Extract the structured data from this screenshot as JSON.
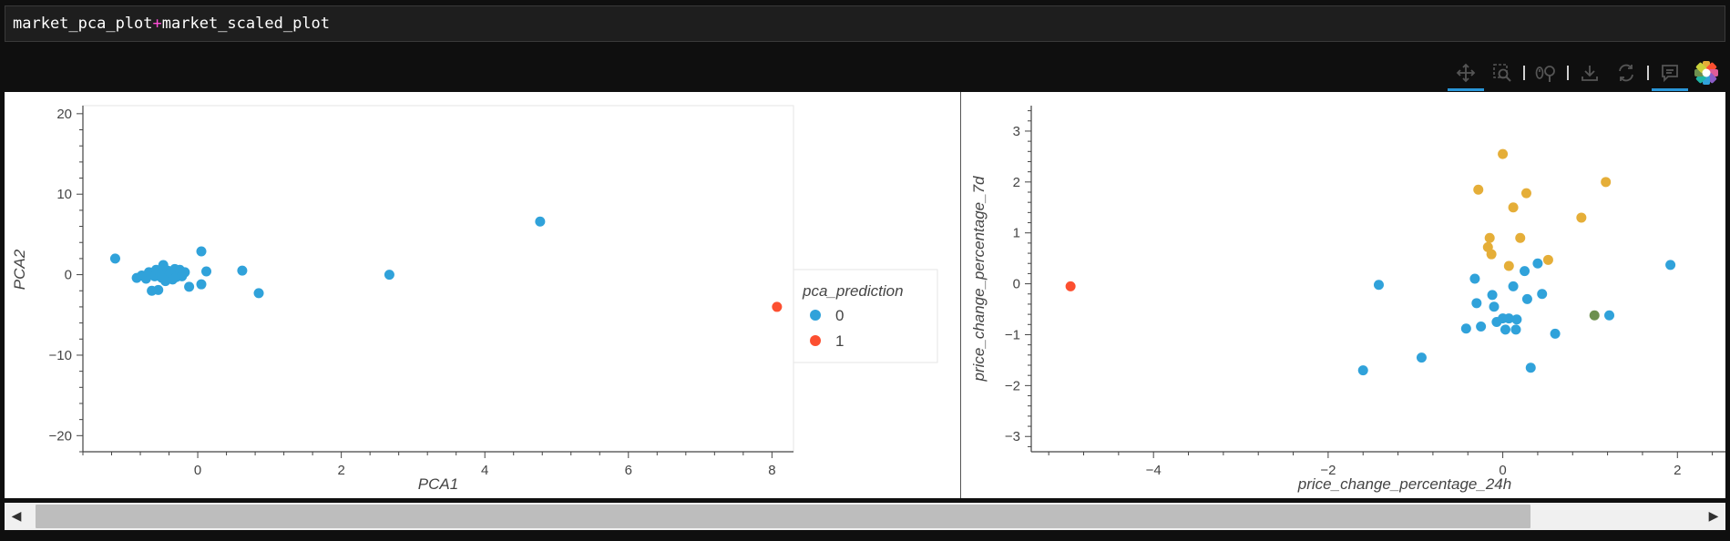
{
  "code": {
    "left_operand": "market_pca_plot",
    "operator": "+",
    "right_operand": "market_scaled_plot"
  },
  "toolbar": {
    "tools": [
      {
        "name": "pan-tool",
        "icon": "pan-icon",
        "active": true
      },
      {
        "name": "box-zoom-tool",
        "icon": "box-zoom-icon",
        "active": false
      },
      {
        "name": "wheel-zoom-tool",
        "icon": "wheel-zoom-icon",
        "active": false
      },
      {
        "name": "save-tool",
        "icon": "save-icon",
        "active": false
      },
      {
        "name": "reset-tool",
        "icon": "reset-icon",
        "active": false
      },
      {
        "name": "hover-tool",
        "icon": "hover-icon",
        "active": true
      },
      {
        "name": "bokeh-logo",
        "icon": "bokeh-logo-icon",
        "active": false
      }
    ]
  },
  "colors": {
    "cluster_0": "#30a2da",
    "cluster_1": "#fc4f30",
    "cluster_2": "#e5ae38",
    "cluster_3": "#6d904f"
  },
  "chart_data": [
    {
      "type": "scatter",
      "title": "",
      "xlabel": "PCA1",
      "ylabel": "PCA2",
      "xlim": [
        -1.6,
        8.3
      ],
      "ylim": [
        -22,
        21
      ],
      "xticks": [
        0,
        2,
        4,
        6,
        8
      ],
      "yticks": [
        -20,
        -10,
        0,
        10,
        20
      ],
      "grid": false,
      "legend": {
        "title": "pca_prediction",
        "placement": "right",
        "entries": [
          {
            "label": "0",
            "color": "#30a2da"
          },
          {
            "label": "1",
            "color": "#fc4f30"
          }
        ]
      },
      "series": [
        {
          "name": "0",
          "color": "#30a2da",
          "points": [
            [
              -1.15,
              2.0
            ],
            [
              -0.85,
              -0.4
            ],
            [
              -0.78,
              -0.1
            ],
            [
              -0.72,
              -0.5
            ],
            [
              -0.68,
              0.3
            ],
            [
              -0.64,
              -2.0
            ],
            [
              -0.6,
              -0.2
            ],
            [
              -0.58,
              0.6
            ],
            [
              -0.55,
              -1.9
            ],
            [
              -0.52,
              0.1
            ],
            [
              -0.5,
              -0.4
            ],
            [
              -0.48,
              1.2
            ],
            [
              -0.45,
              -0.8
            ],
            [
              -0.42,
              0.5
            ],
            [
              -0.4,
              -0.1
            ],
            [
              -0.38,
              0.2
            ],
            [
              -0.35,
              -0.6
            ],
            [
              -0.32,
              0.7
            ],
            [
              -0.3,
              -0.3
            ],
            [
              -0.28,
              0.4
            ],
            [
              -0.25,
              0.6
            ],
            [
              -0.22,
              -0.2
            ],
            [
              -0.18,
              0.3
            ],
            [
              -0.12,
              -1.5
            ],
            [
              0.05,
              2.9
            ],
            [
              0.05,
              -1.2
            ],
            [
              0.12,
              0.4
            ],
            [
              0.62,
              0.5
            ],
            [
              0.85,
              -2.3
            ],
            [
              2.67,
              0.0
            ],
            [
              4.77,
              6.6
            ]
          ]
        },
        {
          "name": "1",
          "color": "#fc4f30",
          "points": [
            [
              8.07,
              -4.0
            ]
          ]
        }
      ]
    },
    {
      "type": "scatter",
      "title": "",
      "xlabel": "price_change_percentage_24h",
      "ylabel": "price_change_percentage_7d",
      "xlim": [
        -5.4,
        2.55
      ],
      "ylim": [
        -3.3,
        3.5
      ],
      "xticks": [
        -4,
        -2,
        0,
        2
      ],
      "yticks": [
        -3,
        -2,
        -1,
        0,
        1,
        2,
        3
      ],
      "grid": false,
      "series": [
        {
          "color": "#30a2da",
          "points": [
            [
              -1.6,
              -1.7
            ],
            [
              -1.42,
              -0.02
            ],
            [
              -0.93,
              -1.45
            ],
            [
              -0.42,
              -0.88
            ],
            [
              -0.32,
              0.1
            ],
            [
              -0.3,
              -0.38
            ],
            [
              -0.25,
              -0.84
            ],
            [
              -0.12,
              -0.22
            ],
            [
              -0.1,
              -0.45
            ],
            [
              -0.07,
              -0.75
            ],
            [
              0.0,
              -0.68
            ],
            [
              0.03,
              -0.9
            ],
            [
              0.07,
              -0.68
            ],
            [
              0.12,
              -0.05
            ],
            [
              0.15,
              -0.9
            ],
            [
              0.16,
              -0.7
            ],
            [
              0.25,
              0.25
            ],
            [
              0.28,
              -0.3
            ],
            [
              0.32,
              -1.65
            ],
            [
              0.4,
              0.4
            ],
            [
              0.45,
              -0.2
            ],
            [
              0.6,
              -0.98
            ],
            [
              1.22,
              -0.62
            ],
            [
              1.92,
              0.37
            ]
          ]
        },
        {
          "color": "#fc4f30",
          "points": [
            [
              -4.95,
              -0.05
            ]
          ]
        },
        {
          "color": "#e5ae38",
          "points": [
            [
              -0.28,
              1.85
            ],
            [
              -0.17,
              0.72
            ],
            [
              -0.15,
              0.9
            ],
            [
              -0.13,
              0.58
            ],
            [
              0.0,
              2.55
            ],
            [
              0.07,
              0.35
            ],
            [
              0.12,
              1.5
            ],
            [
              0.2,
              0.9
            ],
            [
              0.27,
              1.78
            ],
            [
              0.52,
              0.47
            ],
            [
              0.9,
              1.3
            ],
            [
              1.18,
              2.0
            ]
          ]
        },
        {
          "color": "#6d904f",
          "points": [
            [
              1.05,
              -0.62
            ]
          ]
        }
      ]
    }
  ]
}
